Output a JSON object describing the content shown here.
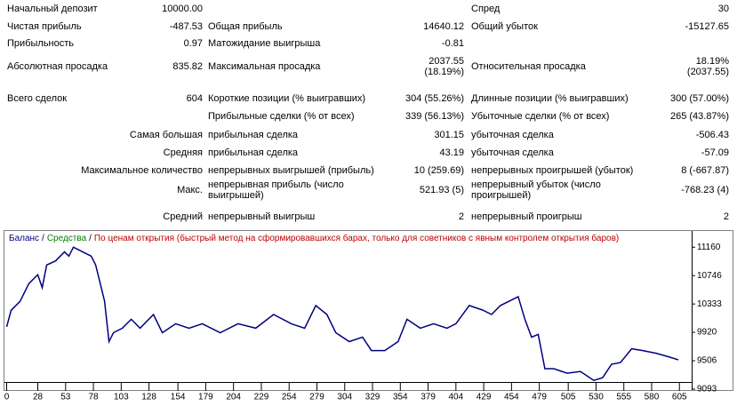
{
  "report": {
    "rows": [
      {
        "l1": "Начальный депозит",
        "v1": "10000.00",
        "l3": "Спред",
        "v3": "30"
      },
      {
        "l1": "Чистая прибыль",
        "v1": "-487.53",
        "l2": "Общая прибыль",
        "v2": "14640.12",
        "l3": "Общий убыток",
        "v3": "-15127.65"
      },
      {
        "l1": "Прибыльность",
        "v1": "0.97",
        "l2": "Матожидание выигрыша",
        "v2": "-0.81"
      },
      {
        "l1": "Абсолютная просадка",
        "v1": "835.82",
        "l2": "Максимальная просадка",
        "v2": "2037.55\n(18.19%)",
        "l3": "Относительная просадка",
        "v3": "18.19%\n(2037.55)"
      },
      {
        "l1": "Всего сделок",
        "v1": "604",
        "l2": "Короткие позиции (% выигравших)",
        "v2": "304 (55.26%)",
        "l3": "Длинные позиции (% выигравших)",
        "v3": "300 (57.00%)"
      },
      {
        "l2": "Прибыльные сделки (% от всех)",
        "v2": "339 (56.13%)",
        "l3": "Убыточные сделки (% от всех)",
        "v3": "265 (43.87%)"
      },
      {
        "v1": "Самая большая",
        "l2": "прибыльная сделка",
        "v2": "301.15",
        "l3": "убыточная сделка",
        "v3": "-506.43"
      },
      {
        "v1": "Средняя",
        "l2": "прибыльная сделка",
        "v2": "43.19",
        "l3": "убыточная сделка",
        "v3": "-57.09"
      },
      {
        "v1": "Максимальное количество",
        "l2": "непрерывных выигрышей (прибыль)",
        "v2": "10 (259.69)",
        "l3": "непрерывных проигрышей (убыток)",
        "v3": "8 (-667.87)"
      },
      {
        "v1": "Макс.",
        "l2": "непрерывная прибыль (число\nвыигрышей)",
        "v2": "521.93 (5)",
        "l3": "непрерывный убыток (число\nпроигрышей)",
        "v3": "-768.23 (4)"
      },
      {
        "v1": "Средний",
        "l2": "непрерывный выигрыш",
        "v2": "2",
        "l3": "непрерывный проигрыш",
        "v3": "2"
      }
    ]
  },
  "chart_data": {
    "type": "line",
    "equity_label": "Средства",
    "separator": "/",
    "model": "По ценам открытия (быстрый метод на сформировавшихся барах, только для советников с явным контролем открытия баров)",
    "x": [
      0,
      4,
      12,
      20,
      28,
      32,
      36,
      44,
      52,
      56,
      60,
      68,
      76,
      80,
      84,
      88,
      92,
      96,
      104,
      112,
      120,
      132,
      140,
      152,
      164,
      176,
      192,
      208,
      224,
      240,
      256,
      268,
      278,
      288,
      296,
      308,
      320,
      328,
      340,
      352,
      360,
      372,
      384,
      396,
      404,
      416,
      428,
      436,
      444,
      452,
      460,
      466,
      472,
      478,
      484,
      492,
      504,
      516,
      528,
      536,
      544,
      552,
      562,
      572,
      584,
      596,
      604
    ],
    "series": [
      {
        "name": "Баланс",
        "color": "#000080",
        "values": [
          10000,
          10240,
          10370,
          10630,
          10760,
          10570,
          10900,
          10960,
          11090,
          11030,
          11160,
          11095,
          11030,
          10900,
          10640,
          10375,
          9785,
          9915,
          9980,
          10110,
          9980,
          10180,
          9915,
          10045,
          9980,
          10045,
          9915,
          10045,
          9980,
          10180,
          10045,
          9980,
          10310,
          10180,
          9915,
          9785,
          9850,
          9655,
          9655,
          9785,
          10110,
          9980,
          10045,
          9980,
          10045,
          10310,
          10245,
          10180,
          10310,
          10375,
          10440,
          10110,
          9850,
          9890,
          9390,
          9390,
          9325,
          9350,
          9220,
          9260,
          9455,
          9480,
          9680,
          9655,
          9615,
          9560,
          9520
        ]
      }
    ],
    "xlim": [
      -2,
      616
    ],
    "ylim": [
      9067,
      11396
    ],
    "xticks": [
      0,
      28,
      53,
      78,
      103,
      128,
      154,
      179,
      204,
      229,
      254,
      279,
      304,
      329,
      354,
      379,
      404,
      429,
      454,
      479,
      505,
      530,
      555,
      580,
      605
    ],
    "yticks": [
      9093,
      9506,
      9920,
      10333,
      10746,
      11160
    ],
    "equity_color": "#008000",
    "model_color": "#c00000"
  }
}
